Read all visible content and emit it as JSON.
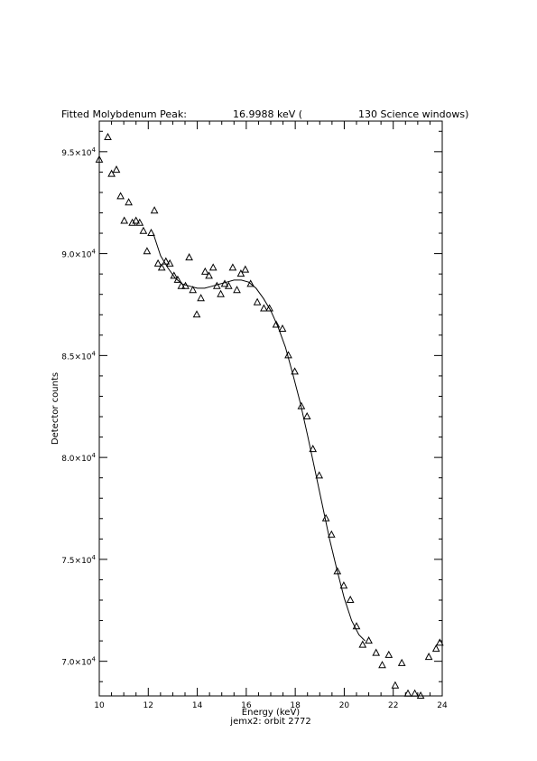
{
  "chart_data": {
    "type": "scatter",
    "title_parts": [
      "Fitted Molybdenum Peak:",
      "16.9988 keV (",
      "130 Science windows)"
    ],
    "xlabel": "Energy (keV)",
    "subcaption": "jemx2: orbit 2772",
    "ylabel": "Detector counts",
    "xlim": [
      10,
      24
    ],
    "ylim": [
      68300,
      96500
    ],
    "x_major_ticks": [
      10,
      12,
      14,
      16,
      18,
      20,
      22,
      24
    ],
    "x_tick_labels": [
      "10",
      "12",
      "14",
      "16",
      "18",
      "20",
      "22",
      "24"
    ],
    "y_major_ticks": [
      70000,
      75000,
      80000,
      85000,
      90000,
      95000
    ],
    "y_tick_labels": [
      {
        "mantissa": "7.0×10",
        "exp": "4"
      },
      {
        "mantissa": "7.5×10",
        "exp": "4"
      },
      {
        "mantissa": "8.0×10",
        "exp": "4"
      },
      {
        "mantissa": "8.5×10",
        "exp": "4"
      },
      {
        "mantissa": "9.0×10",
        "exp": "4"
      },
      {
        "mantissa": "9.5×10",
        "exp": "4"
      }
    ],
    "grid": false,
    "series": [
      {
        "marker": "open-triangle",
        "points": [
          [
            10.0,
            94600
          ],
          [
            10.35,
            95700
          ],
          [
            10.5,
            93900
          ],
          [
            10.7,
            94100
          ],
          [
            10.87,
            92800
          ],
          [
            11.02,
            91600
          ],
          [
            11.2,
            92500
          ],
          [
            11.35,
            91500
          ],
          [
            11.5,
            91600
          ],
          [
            11.65,
            91500
          ],
          [
            11.8,
            91100
          ],
          [
            11.95,
            90100
          ],
          [
            12.12,
            91000
          ],
          [
            12.25,
            92100
          ],
          [
            12.4,
            89500
          ],
          [
            12.55,
            89300
          ],
          [
            12.72,
            89600
          ],
          [
            12.88,
            89500
          ],
          [
            13.05,
            88900
          ],
          [
            13.2,
            88700
          ],
          [
            13.35,
            88400
          ],
          [
            13.52,
            88400
          ],
          [
            13.67,
            89800
          ],
          [
            13.82,
            88200
          ],
          [
            13.98,
            87000
          ],
          [
            14.15,
            87800
          ],
          [
            14.32,
            89100
          ],
          [
            14.48,
            88900
          ],
          [
            14.65,
            89300
          ],
          [
            14.8,
            88400
          ],
          [
            14.96,
            88000
          ],
          [
            15.12,
            88500
          ],
          [
            15.28,
            88400
          ],
          [
            15.45,
            89300
          ],
          [
            15.62,
            88200
          ],
          [
            15.78,
            89000
          ],
          [
            15.96,
            89200
          ],
          [
            16.18,
            88500
          ],
          [
            16.45,
            87600
          ],
          [
            16.72,
            87300
          ],
          [
            16.95,
            87300
          ],
          [
            17.22,
            86500
          ],
          [
            17.48,
            86300
          ],
          [
            17.72,
            85000
          ],
          [
            17.98,
            84200
          ],
          [
            18.25,
            82500
          ],
          [
            18.48,
            82000
          ],
          [
            18.72,
            80400
          ],
          [
            18.98,
            79100
          ],
          [
            19.25,
            77000
          ],
          [
            19.48,
            76200
          ],
          [
            19.72,
            74400
          ],
          [
            19.98,
            73700
          ],
          [
            20.25,
            73000
          ],
          [
            20.5,
            71700
          ],
          [
            20.75,
            70800
          ],
          [
            21.0,
            71000
          ],
          [
            21.3,
            70400
          ],
          [
            21.55,
            69800
          ],
          [
            21.82,
            70300
          ],
          [
            22.08,
            68800
          ],
          [
            22.35,
            69900
          ],
          [
            22.6,
            68400
          ],
          [
            22.88,
            68400
          ],
          [
            23.12,
            68300
          ],
          [
            23.45,
            70200
          ],
          [
            23.75,
            70600
          ],
          [
            23.9,
            70900
          ]
        ]
      },
      {
        "style": "line",
        "points": [
          [
            12.2,
            91000
          ],
          [
            12.5,
            89900
          ],
          [
            12.8,
            89300
          ],
          [
            13.1,
            88800
          ],
          [
            13.4,
            88500
          ],
          [
            13.7,
            88400
          ],
          [
            14.0,
            88300
          ],
          [
            14.3,
            88300
          ],
          [
            14.6,
            88400
          ],
          [
            14.9,
            88500
          ],
          [
            15.2,
            88600
          ],
          [
            15.5,
            88700
          ],
          [
            15.8,
            88700
          ],
          [
            16.1,
            88600
          ],
          [
            16.4,
            88300
          ],
          [
            16.7,
            87800
          ],
          [
            17.0,
            87200
          ],
          [
            17.3,
            86400
          ],
          [
            17.6,
            85400
          ],
          [
            17.9,
            84100
          ],
          [
            18.2,
            82700
          ],
          [
            18.5,
            81100
          ],
          [
            18.8,
            79400
          ],
          [
            19.1,
            77700
          ],
          [
            19.4,
            76000
          ],
          [
            19.7,
            74500
          ],
          [
            20.0,
            73100
          ],
          [
            20.3,
            72000
          ],
          [
            20.6,
            71300
          ],
          [
            20.85,
            71000
          ]
        ]
      }
    ]
  }
}
